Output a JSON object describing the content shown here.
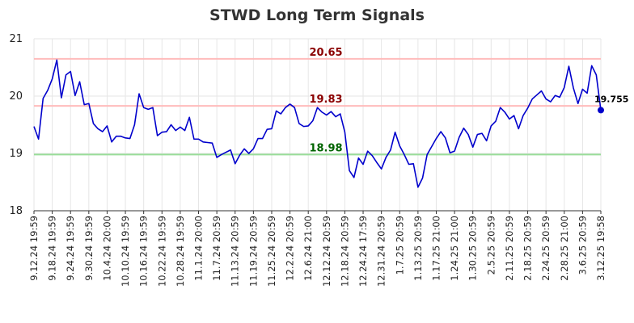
{
  "chart_data": {
    "type": "line",
    "title": "STWD Long Term Signals",
    "xlabel": "",
    "ylabel": "",
    "ylim": [
      18,
      21
    ],
    "y_ticks": [
      18,
      19,
      20,
      21
    ],
    "grid": true,
    "x_tick_labels": [
      "9.12.24 19:59",
      "9.18.24 19:59",
      "9.24.24 19:59",
      "9.30.24 19:59",
      "10.4.24 20:00",
      "10.10.24 19:59",
      "10.16.24 19:59",
      "10.22.24 19:59",
      "10.28.24 19:59",
      "11.1.24 20:00",
      "11.7.24 20:59",
      "11.13.24 20:59",
      "11.19.24 20:59",
      "11.25.24 20:59",
      "12.2.24 20:59",
      "12.6.24 21:00",
      "12.12.24 20:59",
      "12.18.24 20:59",
      "12.24.24 17:59",
      "12.31.24 20:59",
      "1.7.25 20:59",
      "1.13.25 20:59",
      "1.17.25 21:00",
      "1.24.25 21:00",
      "1.30.25 20:59",
      "2.5.25 20:59",
      "2.11.25 20:59",
      "2.18.25 20:59",
      "2.24.25 20:59",
      "2.28.25 21:00",
      "3.6.25 20:59",
      "3.12.25 19:58"
    ],
    "series": [
      {
        "color": "#0000cc",
        "values": [
          19.47,
          19.25,
          19.96,
          20.1,
          20.3,
          20.63,
          19.97,
          20.37,
          20.43,
          20.01,
          20.25,
          19.85,
          19.87,
          19.52,
          19.43,
          19.38,
          19.48,
          19.2,
          19.3,
          19.3,
          19.27,
          19.26,
          19.5,
          20.04,
          19.8,
          19.77,
          19.8,
          19.31,
          19.37,
          19.38,
          19.5,
          19.4,
          19.46,
          19.4,
          19.63,
          19.25,
          19.25,
          19.2,
          19.19,
          19.18,
          18.93,
          18.98,
          19.02,
          19.06,
          18.82,
          18.97,
          19.08,
          19.0,
          19.08,
          19.26,
          19.26,
          19.42,
          19.43,
          19.74,
          19.69,
          19.8,
          19.86,
          19.8,
          19.52,
          19.47,
          19.48,
          19.57,
          19.8,
          19.72,
          19.67,
          19.73,
          19.64,
          19.69,
          19.37,
          18.7,
          18.58,
          18.92,
          18.81,
          19.04,
          18.96,
          18.84,
          18.73,
          18.93,
          19.06,
          19.37,
          19.13,
          18.98,
          18.81,
          18.82,
          18.41,
          18.57,
          18.98,
          19.12,
          19.26,
          19.38,
          19.27,
          19.01,
          19.04,
          19.28,
          19.44,
          19.33,
          19.11,
          19.33,
          19.35,
          19.22,
          19.48,
          19.56,
          19.8,
          19.72,
          19.6,
          19.66,
          19.43,
          19.66,
          19.79,
          19.95,
          20.02,
          20.09,
          19.95,
          19.9,
          20.01,
          19.98,
          20.15,
          20.52,
          20.14,
          19.87,
          20.12,
          20.05,
          20.53,
          20.37,
          19.755
        ]
      }
    ],
    "hlines": [
      {
        "value": 20.65,
        "label": "20.65",
        "color": "#ffbbbb",
        "label_color": "#8b0000"
      },
      {
        "value": 19.83,
        "label": "19.83",
        "color": "#ffbbbb",
        "label_color": "#8b0000"
      },
      {
        "value": 18.98,
        "label": "18.98",
        "color": "#99dd99",
        "label_color": "#006400"
      }
    ],
    "last_value_label": "19.755"
  }
}
